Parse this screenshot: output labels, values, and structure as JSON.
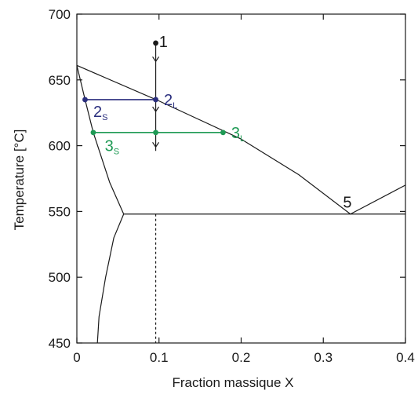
{
  "chart_data": {
    "type": "line",
    "xlabel": "Fraction massique X",
    "ylabel": "Temperature [°C]",
    "xlim": [
      0,
      0.4
    ],
    "ylim": [
      450,
      700
    ],
    "x_ticks": [
      0,
      0.1,
      0.2,
      0.3,
      0.4
    ],
    "x_tick_labels": [
      "0",
      "0.1",
      "0.2",
      "0.3",
      "0.4"
    ],
    "y_ticks": [
      450,
      500,
      550,
      600,
      650,
      700
    ],
    "y_tick_labels": [
      "450",
      "500",
      "550",
      "600",
      "650",
      "700"
    ],
    "series": [
      {
        "role": "liquidus",
        "color": "#1a1a1a",
        "style": "solid",
        "points": [
          [
            0,
            661
          ],
          [
            0.1,
            634
          ],
          [
            0.2,
            605
          ],
          [
            0.27,
            578
          ],
          [
            0.333,
            548
          ],
          [
            0.4,
            570
          ]
        ]
      },
      {
        "role": "solidus",
        "color": "#1a1a1a",
        "style": "solid",
        "points": [
          [
            0,
            661
          ],
          [
            0.01,
            635
          ],
          [
            0.02,
            610
          ],
          [
            0.04,
            572
          ],
          [
            0.057,
            548
          ]
        ]
      },
      {
        "role": "eutectic",
        "color": "#1a1a1a",
        "style": "solid",
        "points": [
          [
            0.057,
            548
          ],
          [
            0.4,
            548
          ]
        ]
      },
      {
        "role": "solvus",
        "color": "#1a1a1a",
        "style": "solid",
        "points": [
          [
            0.057,
            548
          ],
          [
            0.045,
            530
          ],
          [
            0.035,
            500
          ],
          [
            0.027,
            470
          ],
          [
            0.025,
            450
          ]
        ]
      },
      {
        "role": "composition-dashed",
        "color": "#1a1a1a",
        "style": "dashed",
        "points": [
          [
            0.096,
            548
          ],
          [
            0.096,
            450
          ]
        ]
      },
      {
        "role": "cooling-path",
        "color": "#1a1a1a",
        "style": "arrows",
        "points": [
          [
            0.096,
            678
          ],
          [
            0.096,
            596
          ]
        ]
      },
      {
        "role": "tie-line-2",
        "color": "#2b2f7e",
        "style": "solid",
        "points": [
          [
            0.01,
            635
          ],
          [
            0.096,
            635
          ]
        ]
      },
      {
        "role": "tie-line-3",
        "color": "#1f9a55",
        "style": "solid",
        "points": [
          [
            0.02,
            610
          ],
          [
            0.178,
            610
          ]
        ]
      }
    ],
    "markers": [
      {
        "x": 0.096,
        "y": 678,
        "color": "#1a1a1a"
      },
      {
        "x": 0.01,
        "y": 635,
        "color": "#2b2f7e"
      },
      {
        "x": 0.096,
        "y": 635,
        "color": "#2b2f7e"
      },
      {
        "x": 0.02,
        "y": 610,
        "color": "#1f9a55"
      },
      {
        "x": 0.096,
        "y": 610,
        "color": "#1f9a55"
      },
      {
        "x": 0.178,
        "y": 610,
        "color": "#1f9a55"
      }
    ],
    "arrows_y": [
      664,
      626,
      599
    ],
    "annotations": [
      {
        "text": "1",
        "sub": "",
        "x": 0.1,
        "y": 679,
        "color": "#1a1a1a"
      },
      {
        "text": "2",
        "sub": "L",
        "x": 0.106,
        "y": 635,
        "color": "#2b2f7e"
      },
      {
        "text": "2",
        "sub": "S",
        "x": 0.02,
        "y": 626,
        "color": "#2b2f7e"
      },
      {
        "text": "3",
        "sub": "L",
        "x": 0.188,
        "y": 610,
        "color": "#1f9a55"
      },
      {
        "text": "3",
        "sub": "S",
        "x": 0.034,
        "y": 600,
        "color": "#1f9a55"
      },
      {
        "text": "5",
        "sub": "",
        "x": 0.324,
        "y": 557,
        "color": "#1a1a1a"
      }
    ]
  }
}
